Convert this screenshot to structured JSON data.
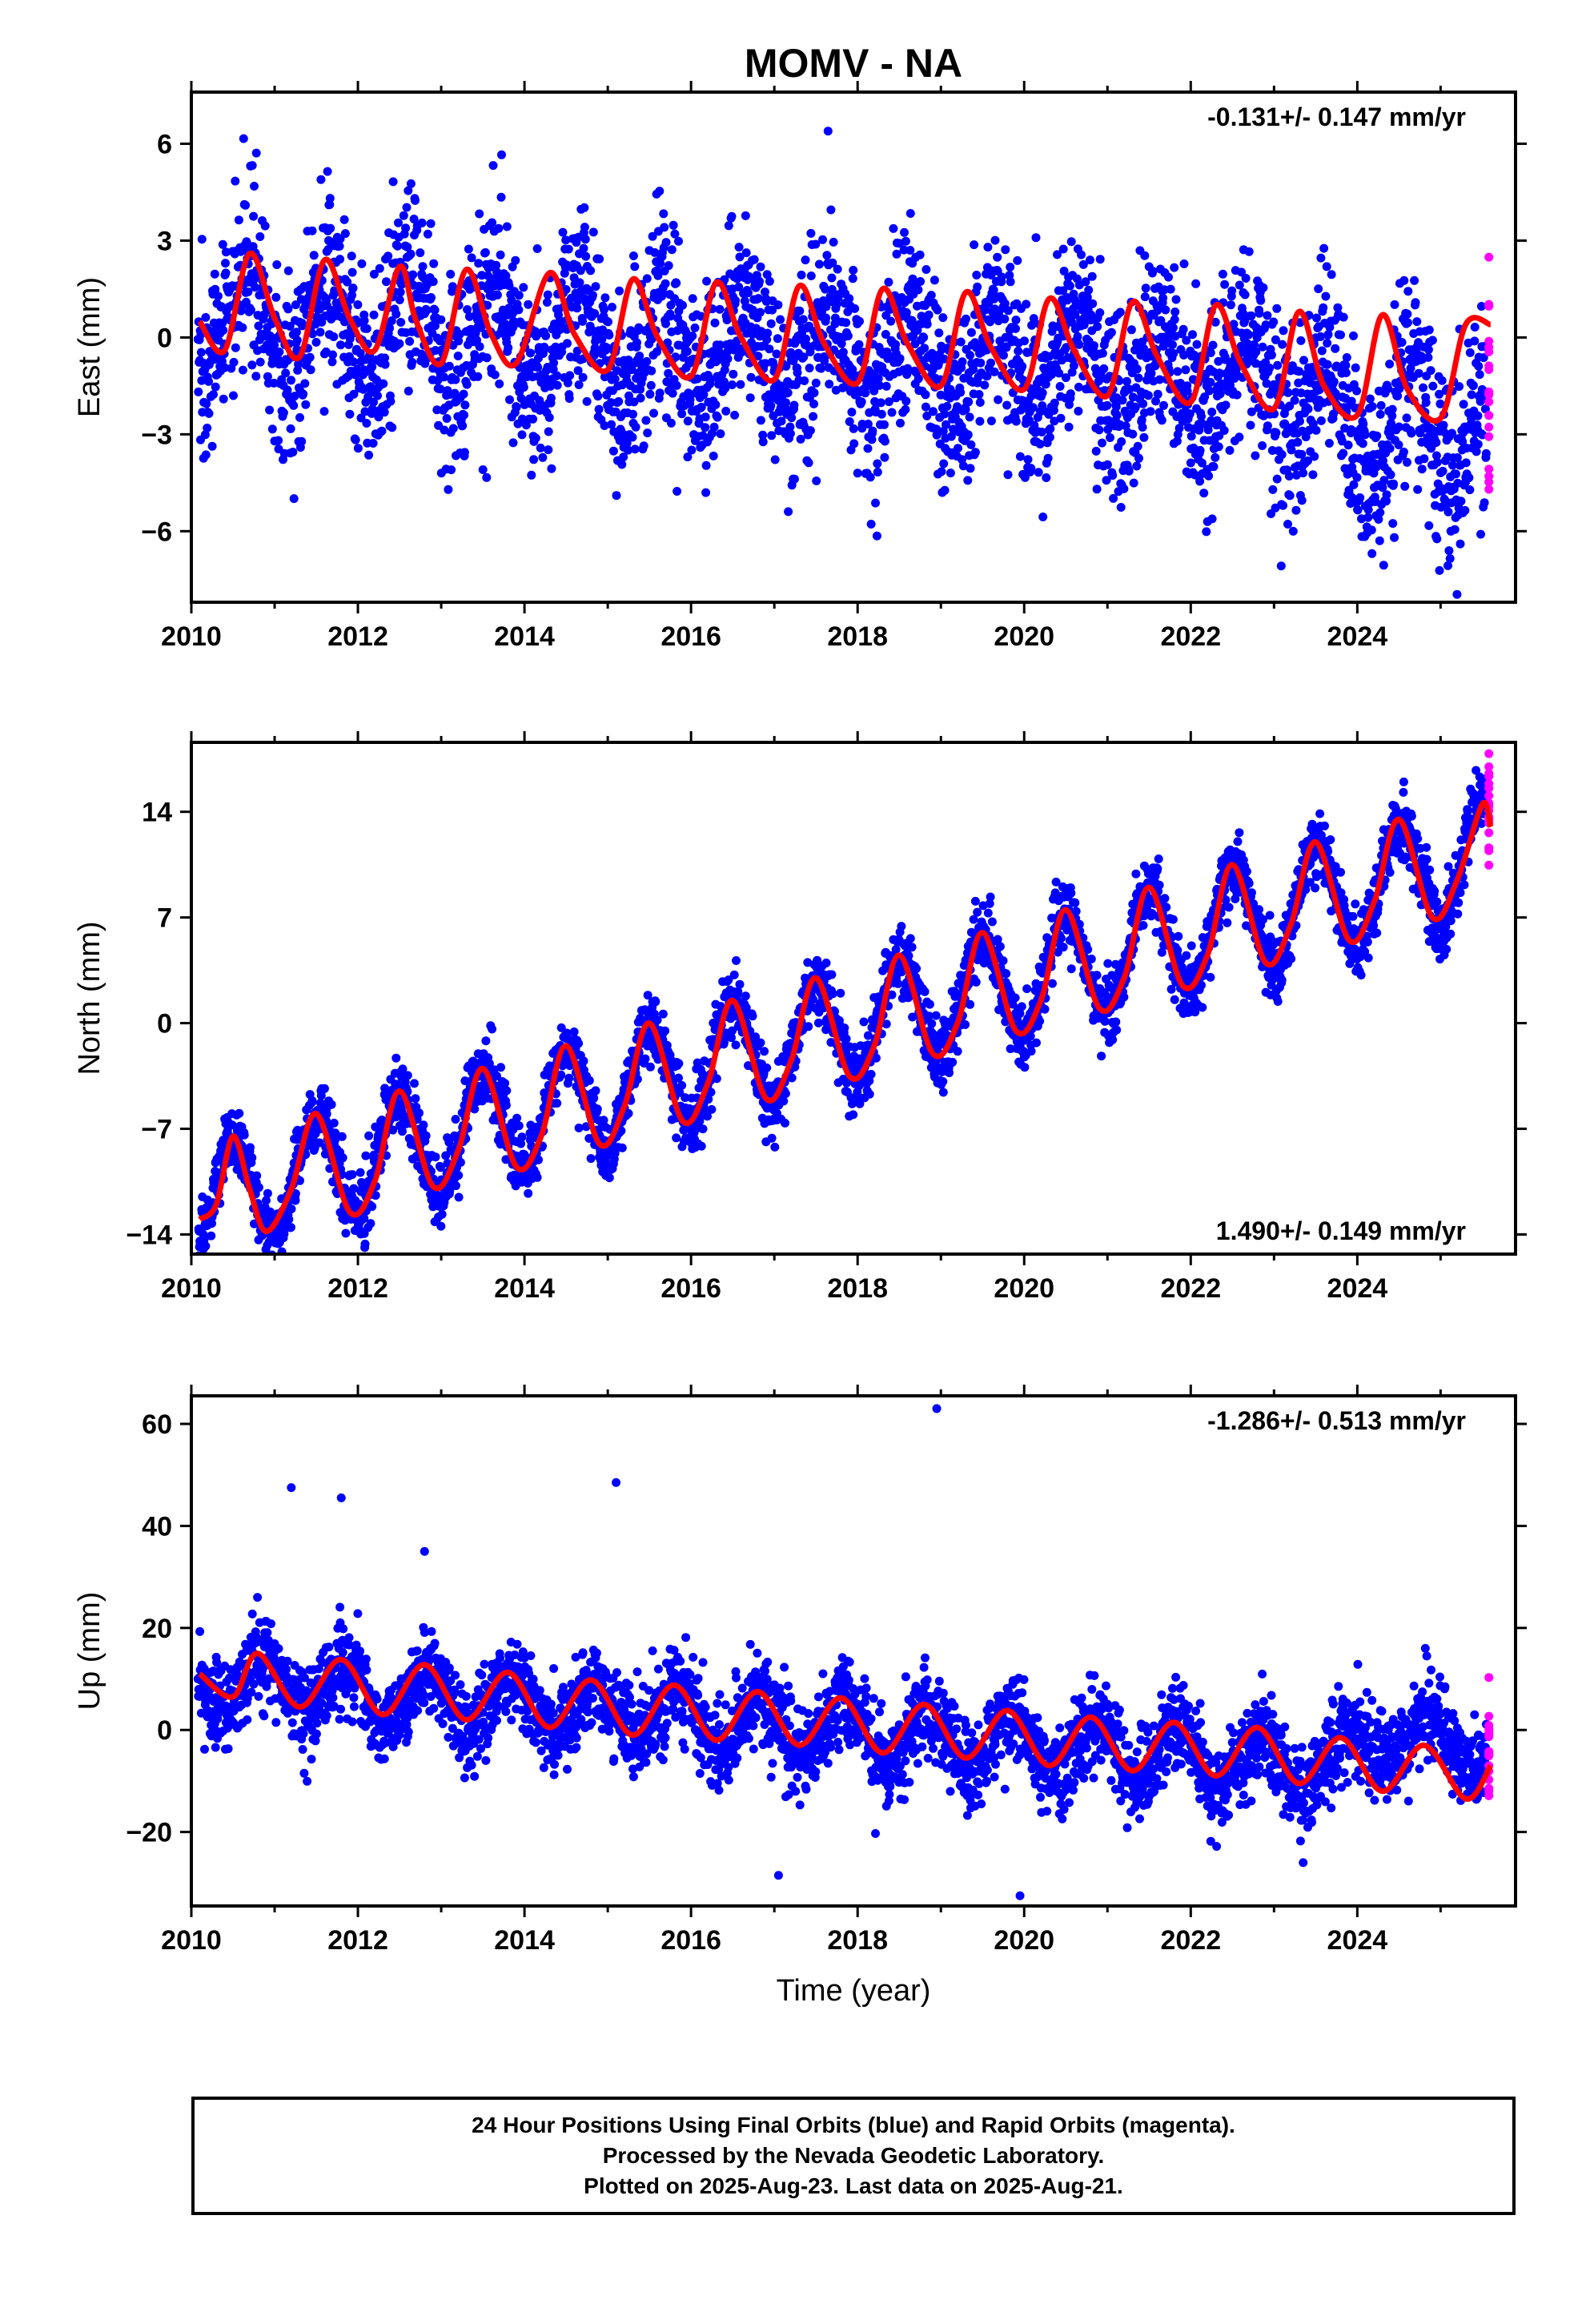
{
  "title": "MOMV - NA",
  "colors": {
    "final": "#0000ff",
    "rapid": "#ff00ff",
    "fit": "#ff0000",
    "frame": "#000000"
  },
  "chart_data": [
    {
      "type": "scatter",
      "component": "East",
      "ylabel": "East (mm)",
      "xlabel": "",
      "xlim": [
        2010.0,
        2025.9
      ],
      "ylim": [
        -8.2,
        7.6
      ],
      "xticks": [
        2010,
        2012,
        2014,
        2016,
        2018,
        2020,
        2022,
        2024
      ],
      "yticks": [
        -6,
        -3,
        0,
        3,
        6
      ],
      "ytick_labels": [
        "−6",
        "−3",
        "0",
        "3",
        "6"
      ],
      "rate_label": "-0.131+/- 0.147 mm/yr",
      "rate_position": "top-right",
      "data_range": [
        2010.08,
        2025.6
      ],
      "rapid_start": 2025.55,
      "trend": {
        "at_2010": 0.5,
        "rate_mm_per_yr": -0.131
      },
      "seasonal": {
        "amplitude": 1.5,
        "peak_phase_yr": 0.65
      },
      "late_offset": {
        "start": 2023.0,
        "value": -1.3
      },
      "scatter_sd": 1.45,
      "fit_curve": {
        "x": [
          2010.1,
          2010.4,
          2010.7,
          2011.0,
          2011.3,
          2011.6,
          2011.9,
          2012.2,
          2012.5,
          2012.7,
          2013.0,
          2013.3,
          2013.6,
          2013.9,
          2014.3,
          2014.6,
          2015.0,
          2015.3,
          2015.6,
          2016.0,
          2016.3,
          2016.6,
          2017.0,
          2017.3,
          2017.6,
          2018.0,
          2018.3,
          2018.6,
          2019.0,
          2019.3,
          2019.6,
          2020.0,
          2020.3,
          2020.6,
          2021.0,
          2021.3,
          2021.6,
          2022.0,
          2022.3,
          2022.6,
          2023.0,
          2023.3,
          2023.6,
          2024.0,
          2024.3,
          2024.6,
          2025.0,
          2025.3,
          2025.6
        ],
        "y": [
          0.5,
          -0.4,
          2.6,
          0.6,
          -0.6,
          2.4,
          0.6,
          -0.4,
          2.2,
          0.5,
          -0.8,
          2.1,
          0.1,
          -0.8,
          2.0,
          0.1,
          -1.0,
          1.8,
          0.0,
          -1.2,
          1.7,
          0.0,
          -1.3,
          1.6,
          -0.2,
          -1.4,
          1.5,
          -0.2,
          -1.5,
          1.4,
          -0.3,
          -1.6,
          1.2,
          -0.4,
          -1.8,
          1.1,
          -0.6,
          -2.0,
          1.0,
          -0.8,
          -2.2,
          0.8,
          -1.5,
          -2.4,
          0.7,
          -1.6,
          -2.5,
          0.4,
          0.4
        ]
      }
    },
    {
      "type": "scatter",
      "component": "North",
      "ylabel": "North (mm)",
      "xlabel": "",
      "xlim": [
        2010.0,
        2025.9
      ],
      "ylim": [
        -15.3,
        18.6
      ],
      "xticks": [
        2010,
        2012,
        2014,
        2016,
        2018,
        2020,
        2022,
        2024
      ],
      "yticks": [
        -14,
        -7,
        0,
        7,
        14
      ],
      "ytick_labels": [
        "−14",
        "−7",
        "0",
        "7",
        "14"
      ],
      "rate_label": "1.490+/- 0.149 mm/yr",
      "rate_position": "bottom-right",
      "data_range": [
        2010.08,
        2025.6
      ],
      "rapid_start": 2025.55,
      "trend": {
        "at_2010": -12.0,
        "rate_mm_per_yr": 1.49
      },
      "seasonal": {
        "amplitude": 3.6,
        "peak_phase_yr": 0.5
      },
      "late_offset": {
        "start": 2030.0,
        "value": 0
      },
      "scatter_sd": 1.15,
      "fit_curve": {
        "x": [
          2010.1,
          2010.3,
          2010.5,
          2010.7,
          2010.9,
          2011.2,
          2011.5,
          2011.9,
          2012.2,
          2012.5,
          2012.9,
          2013.2,
          2013.5,
          2013.9,
          2014.2,
          2014.5,
          2014.9,
          2015.2,
          2015.5,
          2015.9,
          2016.2,
          2016.5,
          2016.9,
          2017.2,
          2017.5,
          2017.9,
          2018.2,
          2018.5,
          2018.9,
          2019.2,
          2019.5,
          2019.9,
          2020.2,
          2020.5,
          2020.9,
          2021.2,
          2021.5,
          2021.9,
          2022.2,
          2022.5,
          2022.9,
          2023.2,
          2023.5,
          2023.9,
          2024.2,
          2024.5,
          2024.9,
          2025.2,
          2025.5,
          2025.6
        ],
        "y": [
          -13.0,
          -12.0,
          -7.5,
          -11.0,
          -13.8,
          -11.0,
          -6.0,
          -12.5,
          -10.5,
          -4.5,
          -10.8,
          -8.5,
          -3.0,
          -9.5,
          -7.5,
          -1.5,
          -8.0,
          -5.5,
          0.0,
          -6.5,
          -4.0,
          1.5,
          -5.0,
          -2.5,
          3.0,
          -3.5,
          -1.5,
          4.5,
          -2.0,
          0.0,
          6.0,
          -0.5,
          1.5,
          7.5,
          1.0,
          3.0,
          9.0,
          2.5,
          4.5,
          10.5,
          4.0,
          6.5,
          12.0,
          5.5,
          8.0,
          13.5,
          7.0,
          9.5,
          14.5,
          13.0
        ]
      }
    },
    {
      "type": "scatter",
      "component": "Up",
      "ylabel": "Up (mm)",
      "xlabel": "Time (year)",
      "xlim": [
        2010.0,
        2025.9
      ],
      "ylim": [
        -34.5,
        65.5
      ],
      "xticks": [
        2010,
        2012,
        2014,
        2016,
        2018,
        2020,
        2022,
        2024
      ],
      "yticks": [
        -20,
        0,
        20,
        40,
        60
      ],
      "ytick_labels": [
        "−20",
        "0",
        "20",
        "40",
        "60"
      ],
      "rate_label": "-1.286+/- 0.513 mm/yr",
      "rate_position": "top-right",
      "data_range": [
        2010.08,
        2025.6
      ],
      "rapid_start": 2025.55,
      "trend": {
        "at_2010": 10.0,
        "rate_mm_per_yr": -1.286
      },
      "seasonal": {
        "amplitude": 5.0,
        "peak_phase_yr": 0.85
      },
      "late_offset": {
        "start": 2023.5,
        "value": 7.0
      },
      "scatter_sd": 4.2,
      "outliers": [
        {
          "x": 2011.2,
          "y": 47.5
        },
        {
          "x": 2011.8,
          "y": 45.5
        },
        {
          "x": 2012.8,
          "y": 35.0
        },
        {
          "x": 2015.1,
          "y": 48.5
        },
        {
          "x": 2018.95,
          "y": 63.0
        },
        {
          "x": 2017.05,
          "y": -28.5
        },
        {
          "x": 2019.95,
          "y": -32.5
        },
        {
          "x": 2023.35,
          "y": -26.0
        }
      ],
      "fit_curve": {
        "x": [
          2010.1,
          2010.5,
          2010.8,
          2011.3,
          2011.8,
          2012.3,
          2012.8,
          2013.3,
          2013.8,
          2014.3,
          2014.8,
          2015.3,
          2015.8,
          2016.3,
          2016.8,
          2017.3,
          2017.8,
          2018.3,
          2018.8,
          2019.3,
          2019.8,
          2020.3,
          2020.8,
          2021.3,
          2021.8,
          2022.3,
          2022.8,
          2023.3,
          2023.8,
          2024.3,
          2024.8,
          2025.3,
          2025.6
        ],
        "y": [
          11.0,
          6.5,
          15.0,
          4.5,
          13.8,
          3.0,
          12.8,
          2.0,
          11.3,
          0.5,
          9.8,
          -1.0,
          8.8,
          -2.0,
          7.5,
          -3.0,
          6.3,
          -4.5,
          5.0,
          -5.5,
          3.8,
          -7.0,
          2.5,
          -8.0,
          1.5,
          -9.0,
          0.5,
          -10.5,
          -1.5,
          -12.0,
          -3.0,
          -13.5,
          -7.0
        ]
      }
    }
  ],
  "footer": {
    "line1": "24 Hour Positions Using Final Orbits (blue) and Rapid Orbits (magenta).",
    "line2": "Processed by the Nevada Geodetic Laboratory.",
    "line3": "Plotted on 2025-Aug-23. Last data on 2025-Aug-21."
  }
}
